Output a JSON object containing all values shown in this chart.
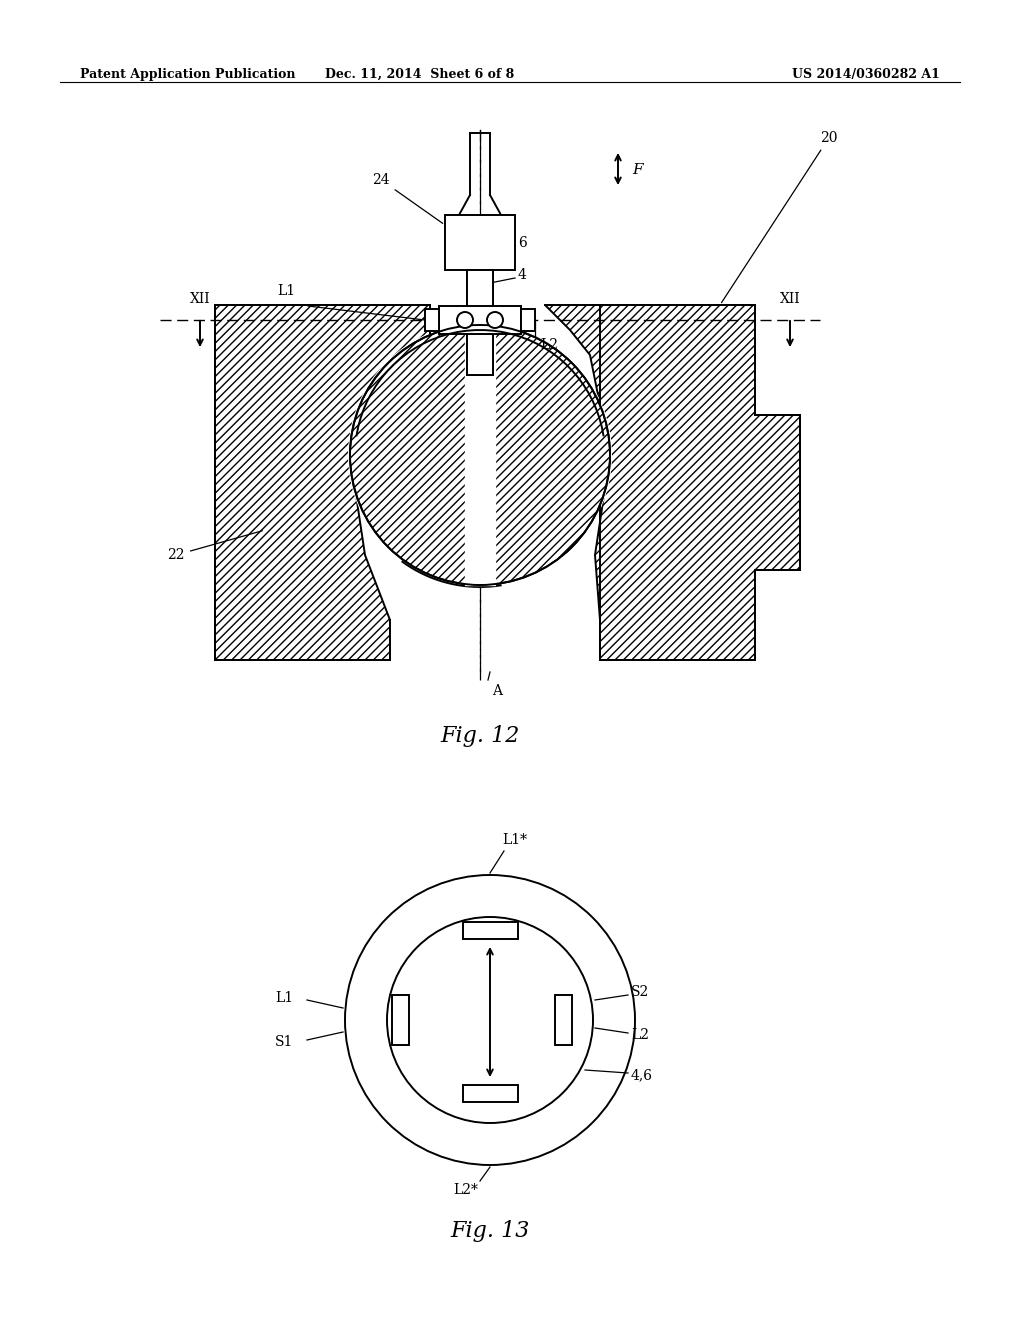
{
  "header_left": "Patent Application Publication",
  "header_mid": "Dec. 11, 2014  Sheet 6 of 8",
  "header_right": "US 2014/0360282 A1",
  "fig12_title": "Fig. 12",
  "fig13_title": "Fig. 13",
  "bg_color": "#ffffff",
  "line_color": "#000000"
}
